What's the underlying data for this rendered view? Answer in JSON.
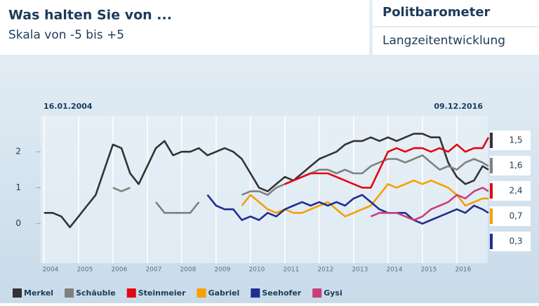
{
  "header": {
    "title": "Was halten Sie von ...",
    "subtitle": "Skala von -5 bis +5",
    "brand": "Politbarometer",
    "section": "Langzeitentwicklung"
  },
  "chart_data": {
    "type": "line",
    "annotations": [
      "16.01.2004",
      "09.12.2016"
    ],
    "x": [
      2004,
      2004.25,
      2004.5,
      2004.75,
      2005,
      2005.25,
      2005.5,
      2005.75,
      2006,
      2006.25,
      2006.5,
      2006.75,
      2007,
      2007.25,
      2007.5,
      2007.75,
      2008,
      2008.25,
      2008.5,
      2008.75,
      2009,
      2009.25,
      2009.5,
      2009.75,
      2010,
      2010.25,
      2010.5,
      2010.75,
      2011,
      2011.25,
      2011.5,
      2011.75,
      2012,
      2012.25,
      2012.5,
      2012.75,
      2013,
      2013.25,
      2013.5,
      2013.75,
      2014,
      2014.25,
      2014.5,
      2014.75,
      2015,
      2015.25,
      2015.5,
      2015.75,
      2016,
      2016.25,
      2016.5,
      2016.75,
      2016.92
    ],
    "xlim": [
      2003.9,
      2016.9
    ],
    "xticks": [
      2004,
      2005,
      2006,
      2007,
      2008,
      2009,
      2010,
      2011,
      2012,
      2013,
      2014,
      2015,
      2016
    ],
    "ylim": [
      -1.1,
      3.0
    ],
    "yticks": [
      0,
      1,
      2
    ],
    "grid": true,
    "series": [
      {
        "name": "Merkel",
        "color": "#333333",
        "end_label": "1,5",
        "values": [
          0.3,
          0.3,
          0.2,
          -0.1,
          0.2,
          0.5,
          0.8,
          1.5,
          2.2,
          2.1,
          1.4,
          1.1,
          1.6,
          2.1,
          2.3,
          1.9,
          2.0,
          2.0,
          2.1,
          1.9,
          2.0,
          2.1,
          2.0,
          1.8,
          1.4,
          1.0,
          0.9,
          1.1,
          1.3,
          1.2,
          1.4,
          1.6,
          1.8,
          1.9,
          2.0,
          2.2,
          2.3,
          2.3,
          2.4,
          2.3,
          2.4,
          2.3,
          2.4,
          2.5,
          2.5,
          2.4,
          2.4,
          1.7,
          1.3,
          1.1,
          1.2,
          1.6,
          1.5
        ]
      },
      {
        "name": "Schäuble",
        "color": "#808080",
        "end_label": "1,6",
        "values": [
          null,
          null,
          null,
          null,
          null,
          null,
          null,
          null,
          1.0,
          0.9,
          1.0,
          null,
          null,
          0.6,
          0.3,
          0.3,
          0.3,
          0.3,
          0.6,
          null,
          null,
          null,
          null,
          0.8,
          0.9,
          0.9,
          0.8,
          1.0,
          1.1,
          1.2,
          1.3,
          1.4,
          1.5,
          1.5,
          1.4,
          1.5,
          1.4,
          1.4,
          1.6,
          1.7,
          1.8,
          1.8,
          1.7,
          1.8,
          1.9,
          1.7,
          1.5,
          1.6,
          1.5,
          1.7,
          1.8,
          1.7,
          1.6
        ]
      },
      {
        "name": "Steinmeier",
        "color": "#e30613",
        "end_label": "2,4",
        "values": [
          null,
          null,
          null,
          null,
          null,
          null,
          null,
          null,
          null,
          null,
          null,
          null,
          null,
          null,
          null,
          null,
          null,
          null,
          null,
          null,
          null,
          null,
          null,
          null,
          null,
          null,
          null,
          null,
          1.1,
          1.2,
          1.3,
          1.4,
          1.4,
          1.4,
          1.3,
          1.2,
          1.1,
          1.0,
          1.0,
          1.5,
          2.0,
          2.1,
          2.0,
          2.1,
          2.1,
          2.0,
          2.1,
          2.0,
          2.2,
          2.0,
          2.1,
          2.1,
          2.4
        ]
      },
      {
        "name": "Gabriel",
        "color": "#f5a000",
        "end_label": "0,7",
        "values": [
          null,
          null,
          null,
          null,
          null,
          null,
          null,
          null,
          null,
          null,
          null,
          null,
          null,
          null,
          null,
          null,
          null,
          null,
          null,
          null,
          null,
          null,
          null,
          0.5,
          0.8,
          0.6,
          0.4,
          0.3,
          0.4,
          0.3,
          0.3,
          0.4,
          0.5,
          0.6,
          0.4,
          0.2,
          0.3,
          0.4,
          0.5,
          0.8,
          1.1,
          1.0,
          1.1,
          1.2,
          1.1,
          1.2,
          1.1,
          1.0,
          0.8,
          0.5,
          0.6,
          0.7,
          0.7
        ]
      },
      {
        "name": "Seehofer",
        "color": "#1f2f8f",
        "end_label": "0,3",
        "values": [
          null,
          null,
          null,
          null,
          null,
          null,
          null,
          null,
          null,
          null,
          null,
          null,
          null,
          null,
          null,
          null,
          null,
          null,
          null,
          0.8,
          0.5,
          0.4,
          0.4,
          0.1,
          0.2,
          0.1,
          0.3,
          0.2,
          0.4,
          0.5,
          0.6,
          0.5,
          0.6,
          0.5,
          0.6,
          0.5,
          0.7,
          0.8,
          0.6,
          0.4,
          0.3,
          0.3,
          0.3,
          0.1,
          0.0,
          0.1,
          0.2,
          0.3,
          0.4,
          0.3,
          0.5,
          0.4,
          0.3
        ]
      },
      {
        "name": "Gysi",
        "color": "#c8407a",
        "values": [
          null,
          null,
          null,
          null,
          null,
          null,
          null,
          null,
          null,
          null,
          null,
          null,
          null,
          null,
          null,
          null,
          null,
          null,
          null,
          null,
          null,
          null,
          null,
          null,
          null,
          null,
          null,
          null,
          null,
          null,
          null,
          null,
          null,
          null,
          null,
          null,
          null,
          null,
          0.2,
          0.3,
          0.3,
          0.3,
          0.2,
          0.1,
          0.2,
          0.4,
          0.5,
          0.6,
          0.8,
          0.7,
          0.9,
          1.0,
          0.9
        ]
      }
    ]
  }
}
